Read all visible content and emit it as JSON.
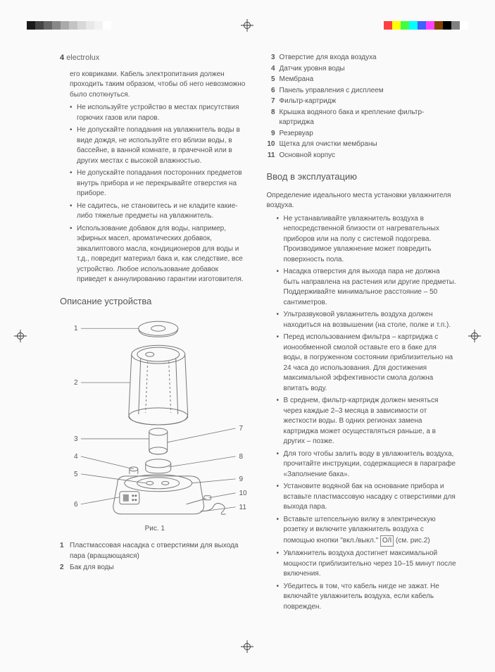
{
  "color_bar_left": [
    "#1a1a1a",
    "#444",
    "#666",
    "#888",
    "#aaa",
    "#c4c4c4",
    "#d8d8d8",
    "#e8e8e8",
    "#f2f2f2",
    "#ffffff"
  ],
  "color_bar_right": [
    "#ff4040",
    "#ffff00",
    "#40ff40",
    "#00ffff",
    "#4060ff",
    "#ff40ff",
    "#804000",
    "#000000",
    "#808080",
    "#ffffff"
  ],
  "header": {
    "page_num": "4",
    "brand": "electrolux"
  },
  "left_col": {
    "intro": "его ковриками. Кабель электропитания должен проходить таким образом, чтобы об него невозможно было споткнуться.",
    "bullets": [
      "Не используйте устройство в местах присутствия горючих газов или паров.",
      "Не допускайте попадания на увлажнитель воды в виде дождя, не используйте его вблизи воды, в бассейне, в ванной комнате, в прачечной или в других местах с высокой влажностью.",
      "Не допускайте попадания посторонних предметов внутрь прибора и не перекрывайте отверстия на приборе.",
      "Не садитесь, не становитесь и не кладите какие-либо тяжелые предметы на увлажнитель.",
      "Использование добавок для воды, например, эфирных масел, ароматических добавок, эвкалиптового масла, кондиционеров для воды и т.д., повредит материал бака и, как следствие, все устройство. Любое использование добавок приведет к аннулированию гарантии изготовителя."
    ],
    "section_title": "Описание устройства",
    "fig_labels_left": [
      "1",
      "2",
      "3",
      "4",
      "5",
      "6"
    ],
    "fig_labels_right": [
      "7",
      "8",
      "9",
      "10",
      "11"
    ],
    "fig_caption": "Рис. 1",
    "desc": [
      {
        "n": "1",
        "t": "Пластмассовая насадка с отверстиями для выхода пара (вращающаяся)"
      },
      {
        "n": "2",
        "t": "Бак для воды"
      }
    ]
  },
  "right_col": {
    "parts": [
      {
        "n": "3",
        "t": "Отверстие для входа воздуха"
      },
      {
        "n": "4",
        "t": "Датчик уровня воды"
      },
      {
        "n": "5",
        "t": "Мембрана"
      },
      {
        "n": "6",
        "t": "Панель управления с дисплеем"
      },
      {
        "n": "7",
        "t": "Фильтр-картридж"
      },
      {
        "n": "8",
        "t": "Крышка водяного бака и крепление фильтр-картриджа"
      },
      {
        "n": "9",
        "t": "Резервуар"
      },
      {
        "n": "10",
        "t": "Щетка для очистки мембраны"
      },
      {
        "n": "11",
        "t": "Основной корпус"
      }
    ],
    "section_title": "Ввод в эксплуатацию",
    "intro": "Определение идеального места установки увлажнителя воздуха.",
    "bullets": [
      "Не устанавливайте увлажнитель воздуха в непосредственной близости от нагревательных приборов или на полу с системой подогрева. Производимое увлажнение может повредить поверхность пола.",
      "Насадка отверстия для выхода пара не должна быть направлена на растения или другие предметы. Поддерживайте минимальное расстояние – 50 сантиметров.",
      "Ультразвуковой увлажнитель воздуха должен находиться на возвышении (на столе, полке и т.п.).",
      "Перед использованием фильтра – картриджа с ионообменной смолой оставьте его в баке для воды, в погруженном состоянии приблизительно на 24 часа до использования. Для достижения максимальной эффективности смола должна впитать воду.",
      "В среднем, фильтр-картридж должен меняться через каждые 2–3 месяца в зависимости от жесткости воды. В одних регионах замена картриджа может осуществляться раньше, а в других – позже.",
      "Для того чтобы залить воду в увлажнитель воздуха, прочитайте инструкции, содержащиеся в параграфе «Заполнение бака».",
      "Установите водяной бак на основание прибора и вставьте пластмассовую насадку с отверстиями для выхода пара.",
      "Вставьте штепсельную вилку в электрическую розетку и включите увлажнитель воздуха с помощью кнопки \"вкл./выкл.\" O/I (см. рис.2)",
      "Увлажнитель воздуха достигнет максимальной мощности приблизительно через 10–15 минут после включения.",
      "Убедитесь в том, что кабель нигде не зажат. Не включайте увлажнитель воздуха, если кабель поврежден."
    ],
    "boxed_index": 7,
    "boxed_text": "O/I"
  }
}
